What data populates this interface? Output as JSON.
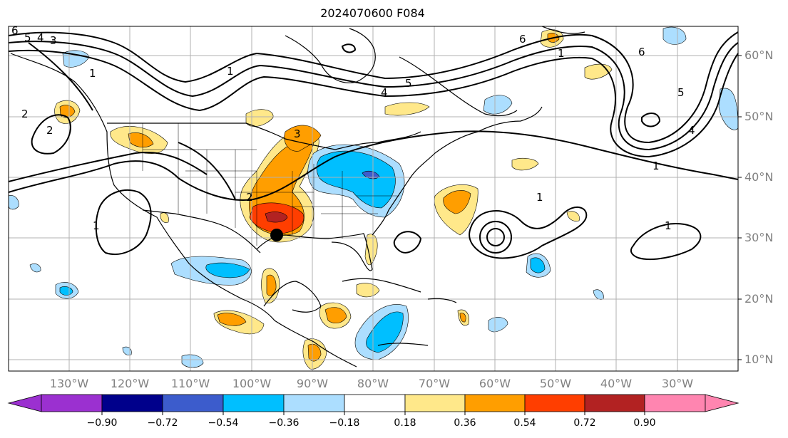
{
  "title": "2024070600 F084",
  "map": {
    "lat_labels": [
      "60°N",
      "50°N",
      "40°N",
      "30°N",
      "20°N",
      "10°N"
    ],
    "lon_labels": [
      "130°W",
      "120°W",
      "110°W",
      "100°W",
      "90°W",
      "80°W",
      "70°W",
      "60°W",
      "50°W",
      "40°W",
      "30°W"
    ],
    "contour_labels": [
      "6",
      "5",
      "4",
      "3",
      "1",
      "2",
      "2",
      "1",
      "1",
      "2",
      "3",
      "4",
      "5",
      "6",
      "1",
      "6",
      "5",
      "4",
      "1",
      "1",
      "1"
    ],
    "marker": "filled black circle near Houston, Texas"
  },
  "colorbar": {
    "ticks": [
      "−0.90",
      "−0.72",
      "−0.54",
      "−0.36",
      "−0.18",
      "0.18",
      "0.36",
      "0.54",
      "0.72",
      "0.90"
    ],
    "colors": [
      "#9b30d0",
      "#00008b",
      "#3c5ccc",
      "#00bfff",
      "#acdeff",
      "#ffffff",
      "#ffe88a",
      "#ff9e00",
      "#ff3e00",
      "#b22222",
      "#ff85b0"
    ]
  }
}
